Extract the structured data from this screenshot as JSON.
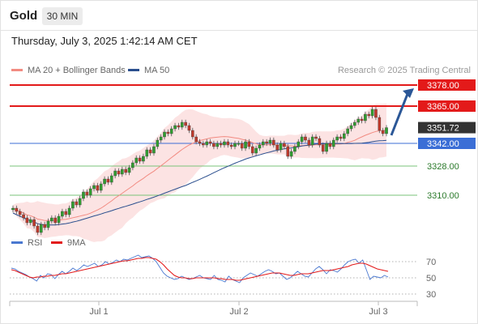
{
  "header": {
    "symbol": "Gold",
    "timeframe": "30 MIN"
  },
  "datetime": "Thursday, July 3, 2025 1:42:14 AM CET",
  "copyright": "Research © 2025 Trading Central",
  "legend": [
    {
      "label": "MA 20 + Bollinger Bands",
      "color": "#f28b82"
    },
    {
      "label": "MA 50",
      "color": "#2b4f8e"
    }
  ],
  "rsi_legend": [
    {
      "label": "RSI",
      "color": "#4a78d0"
    },
    {
      "label": "9MA",
      "color": "#e31a1a"
    }
  ],
  "colors": {
    "up": "#2f9e2f",
    "down": "#c0392b",
    "resistance": "#e31a1a",
    "support": "#7ac37a",
    "pivot": "#3b6ed6",
    "arrow": "#2b5797"
  },
  "chart_data": [
    {
      "type": "candlestick",
      "y_range": [
        3285,
        3385
      ],
      "x_ticks": [
        "Jul 1",
        "Jul 2",
        "Jul 3"
      ],
      "current_price": "3351.72",
      "levels": [
        {
          "value": 3378,
          "label": "3378.00",
          "kind": "resistance"
        },
        {
          "value": 3365,
          "label": "3365.00",
          "kind": "resistance"
        },
        {
          "value": 3342,
          "label": "3342.00",
          "kind": "pivot"
        },
        {
          "value": 3328,
          "label": "3328.00",
          "kind": "support"
        },
        {
          "value": 3310,
          "label": "3310.00",
          "kind": "support"
        }
      ],
      "close_path": [
        3302,
        3300,
        3298,
        3296,
        3293,
        3295,
        3291,
        3287,
        3292,
        3290,
        3294,
        3296,
        3293,
        3297,
        3300,
        3298,
        3302,
        3306,
        3304,
        3308,
        3312,
        3310,
        3314,
        3316,
        3313,
        3317,
        3320,
        3318,
        3322,
        3325,
        3323,
        3326,
        3324,
        3327,
        3330,
        3333,
        3331,
        3334,
        3338,
        3336,
        3340,
        3344,
        3346,
        3349,
        3348,
        3351,
        3353,
        3352,
        3355,
        3353,
        3350,
        3346,
        3343,
        3342,
        3341,
        3343,
        3342,
        3340,
        3342,
        3341,
        3343,
        3341,
        3340,
        3342,
        3342,
        3339,
        3343,
        3340,
        3336,
        3339,
        3341,
        3343,
        3342,
        3344,
        3341,
        3338,
        3342,
        3340,
        3334,
        3337,
        3340,
        3343,
        3346,
        3344,
        3341,
        3346,
        3345,
        3341,
        3337,
        3342,
        3340,
        3344,
        3346,
        3345,
        3348,
        3351,
        3353,
        3355,
        3357,
        3356,
        3360,
        3359,
        3363,
        3358,
        3350,
        3348,
        3351.72
      ],
      "rsi": {
        "levels": [
          70,
          50,
          30
        ],
        "range": [
          20,
          80
        ],
        "rsi_path": [
          62,
          61,
          58,
          56,
          54,
          51,
          49,
          46,
          53,
          50,
          55,
          54,
          49,
          54,
          58,
          55,
          58,
          62,
          59,
          62,
          66,
          64,
          66,
          68,
          64,
          66,
          70,
          67,
          69,
          72,
          70,
          73,
          72,
          74,
          76,
          78,
          75,
          76,
          77,
          74,
          70,
          63,
          56,
          52,
          50,
          48,
          49,
          52,
          50,
          48,
          49,
          51,
          53,
          50,
          49,
          48,
          53,
          48,
          47,
          45,
          52,
          48,
          46,
          44,
          50,
          53,
          56,
          54,
          52,
          55,
          58,
          60,
          58,
          55,
          56,
          52,
          48,
          50,
          54,
          58,
          55,
          52,
          51,
          56,
          61,
          64,
          60,
          55,
          60,
          59,
          57,
          61,
          66,
          70,
          72,
          73,
          68,
          72,
          60,
          48,
          52,
          51,
          50,
          53,
          51
        ],
        "ma_path": [
          60,
          59,
          57,
          55,
          53,
          51,
          50,
          51,
          51,
          52,
          52,
          53,
          53,
          54,
          55,
          55,
          56,
          57,
          58,
          59,
          60,
          61,
          62,
          63,
          64,
          65,
          66,
          67,
          68,
          69,
          70,
          71,
          71,
          72,
          73,
          74,
          74,
          75,
          75,
          74,
          73,
          70,
          66,
          61,
          57,
          53,
          51,
          50,
          50,
          49,
          49,
          50,
          50,
          50,
          50,
          50,
          50,
          49,
          49,
          48,
          48,
          48,
          47,
          47,
          48,
          49,
          50,
          51,
          52,
          53,
          54,
          55,
          56,
          56,
          56,
          55,
          54,
          53,
          53,
          54,
          55,
          55,
          55,
          56,
          57,
          58,
          59,
          59,
          59,
          60,
          61,
          62,
          63,
          64,
          66,
          67,
          68,
          68,
          67,
          65,
          63,
          61,
          60,
          59,
          58
        ]
      }
    }
  ]
}
